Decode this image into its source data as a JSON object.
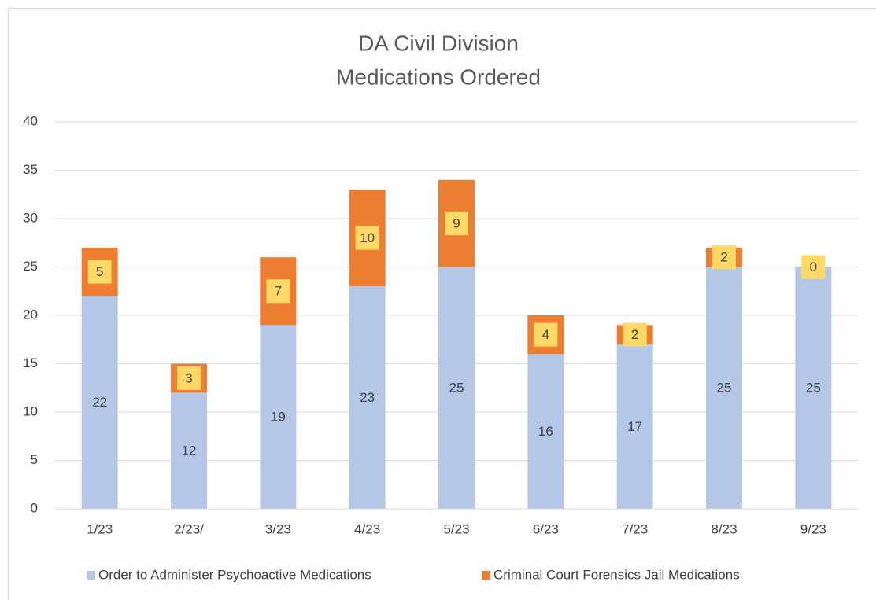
{
  "chart_data": {
    "type": "stacked_bar",
    "title": [
      "DA Civil Division",
      "Medications Ordered"
    ],
    "categories": [
      "1/23",
      "2/23/",
      "3/23",
      "4/23",
      "5/23",
      "6/23",
      "7/23",
      "8/23",
      "9/23"
    ],
    "series": [
      {
        "name": "Order to Administer Psychoactive Medications",
        "color": "#b4c7e7",
        "values": [
          22,
          12,
          19,
          23,
          25,
          16,
          17,
          25,
          25
        ]
      },
      {
        "name": "Criminal Court Forensics Jail Medications",
        "color": "#ed7d31",
        "values": [
          5,
          3,
          7,
          10,
          9,
          4,
          2,
          2,
          0
        ]
      }
    ],
    "ylim": [
      0,
      40
    ],
    "yticks": [
      0,
      5,
      10,
      15,
      20,
      25,
      30,
      35,
      40
    ],
    "grid": true,
    "legend": "bottom"
  }
}
